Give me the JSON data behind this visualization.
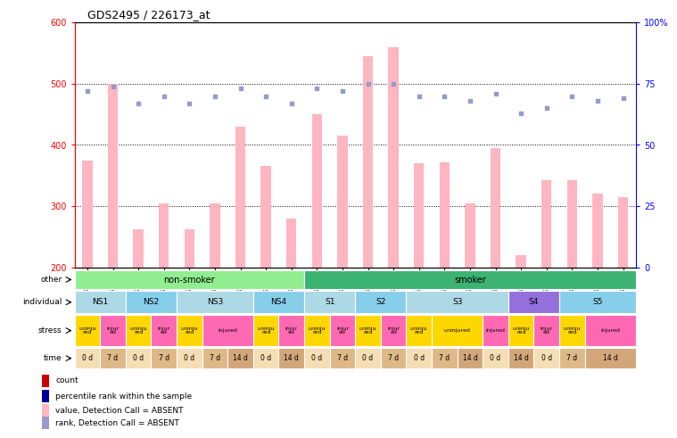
{
  "title": "GDS2495 / 226173_at",
  "samples": [
    "GSM122528",
    "GSM122531",
    "GSM122539",
    "GSM122540",
    "GSM122541",
    "GSM122542",
    "GSM122543",
    "GSM122544",
    "GSM122546",
    "GSM122527",
    "GSM122529",
    "GSM122530",
    "GSM122532",
    "GSM122533",
    "GSM122535",
    "GSM122536",
    "GSM122538",
    "GSM122534",
    "GSM122537",
    "GSM122545",
    "GSM122547",
    "GSM122548"
  ],
  "bar_values": [
    375,
    500,
    262,
    305,
    262,
    305,
    430,
    365,
    280,
    450,
    415,
    545,
    560,
    370,
    372,
    305,
    395,
    220,
    342,
    342,
    320,
    315
  ],
  "dot_values": [
    72,
    74,
    67,
    70,
    67,
    70,
    73,
    70,
    67,
    73,
    72,
    75,
    75,
    70,
    70,
    68,
    71,
    63,
    65,
    70,
    68,
    69
  ],
  "ylim_left": [
    200,
    600
  ],
  "ylim_right": [
    0,
    100
  ],
  "yticks_left": [
    200,
    300,
    400,
    500,
    600
  ],
  "yticks_right": [
    0,
    25,
    50,
    75,
    100
  ],
  "bar_color": "#FFB6C1",
  "dot_color": "#9999CC",
  "hlines": [
    300,
    400,
    500
  ],
  "other_row": [
    {
      "label": "non-smoker",
      "start": 0,
      "end": 9,
      "color": "#90EE90"
    },
    {
      "label": "smoker",
      "start": 9,
      "end": 22,
      "color": "#3CB371"
    }
  ],
  "individual_row": [
    {
      "label": "NS1",
      "start": 0,
      "end": 2,
      "color": "#ADD8E6"
    },
    {
      "label": "NS2",
      "start": 2,
      "end": 4,
      "color": "#87CEEB"
    },
    {
      "label": "NS3",
      "start": 4,
      "end": 7,
      "color": "#ADD8E6"
    },
    {
      "label": "NS4",
      "start": 7,
      "end": 9,
      "color": "#87CEEB"
    },
    {
      "label": "S1",
      "start": 9,
      "end": 11,
      "color": "#ADD8E6"
    },
    {
      "label": "S2",
      "start": 11,
      "end": 13,
      "color": "#87CEEB"
    },
    {
      "label": "S3",
      "start": 13,
      "end": 17,
      "color": "#ADD8E6"
    },
    {
      "label": "S4",
      "start": 17,
      "end": 19,
      "color": "#9370DB"
    },
    {
      "label": "S5",
      "start": 19,
      "end": 22,
      "color": "#87CEEB"
    }
  ],
  "stress_row": [
    {
      "label": "uninju\nred",
      "start": 0,
      "end": 1,
      "color": "#FFD700"
    },
    {
      "label": "injur\ned",
      "start": 1,
      "end": 2,
      "color": "#FF69B4"
    },
    {
      "label": "uninju\nred",
      "start": 2,
      "end": 3,
      "color": "#FFD700"
    },
    {
      "label": "injur\ned",
      "start": 3,
      "end": 4,
      "color": "#FF69B4"
    },
    {
      "label": "uninju\nred",
      "start": 4,
      "end": 5,
      "color": "#FFD700"
    },
    {
      "label": "injured",
      "start": 5,
      "end": 7,
      "color": "#FF69B4"
    },
    {
      "label": "uninju\nred",
      "start": 7,
      "end": 8,
      "color": "#FFD700"
    },
    {
      "label": "injur\ned",
      "start": 8,
      "end": 9,
      "color": "#FF69B4"
    },
    {
      "label": "uninju\nred",
      "start": 9,
      "end": 10,
      "color": "#FFD700"
    },
    {
      "label": "injur\ned",
      "start": 10,
      "end": 11,
      "color": "#FF69B4"
    },
    {
      "label": "uninju\nred",
      "start": 11,
      "end": 12,
      "color": "#FFD700"
    },
    {
      "label": "injur\ned",
      "start": 12,
      "end": 13,
      "color": "#FF69B4"
    },
    {
      "label": "uninju\nred",
      "start": 13,
      "end": 14,
      "color": "#FFD700"
    },
    {
      "label": "uninjured",
      "start": 14,
      "end": 16,
      "color": "#FFD700"
    },
    {
      "label": "injured",
      "start": 16,
      "end": 17,
      "color": "#FF69B4"
    },
    {
      "label": "uninju\nred",
      "start": 17,
      "end": 18,
      "color": "#FFD700"
    },
    {
      "label": "injur\ned",
      "start": 18,
      "end": 19,
      "color": "#FF69B4"
    },
    {
      "label": "uninju\nred",
      "start": 19,
      "end": 20,
      "color": "#FFD700"
    },
    {
      "label": "injured",
      "start": 20,
      "end": 22,
      "color": "#FF69B4"
    }
  ],
  "time_row": [
    {
      "label": "0 d",
      "start": 0,
      "end": 1,
      "color": "#F5DEB3"
    },
    {
      "label": "7 d",
      "start": 1,
      "end": 2,
      "color": "#DEB887"
    },
    {
      "label": "0 d",
      "start": 2,
      "end": 3,
      "color": "#F5DEB3"
    },
    {
      "label": "7 d",
      "start": 3,
      "end": 4,
      "color": "#DEB887"
    },
    {
      "label": "0 d",
      "start": 4,
      "end": 5,
      "color": "#F5DEB3"
    },
    {
      "label": "7 d",
      "start": 5,
      "end": 6,
      "color": "#DEB887"
    },
    {
      "label": "14 d",
      "start": 6,
      "end": 7,
      "color": "#D2A679"
    },
    {
      "label": "0 d",
      "start": 7,
      "end": 8,
      "color": "#F5DEB3"
    },
    {
      "label": "14 d",
      "start": 8,
      "end": 9,
      "color": "#D2A679"
    },
    {
      "label": "0 d",
      "start": 9,
      "end": 10,
      "color": "#F5DEB3"
    },
    {
      "label": "7 d",
      "start": 10,
      "end": 11,
      "color": "#DEB887"
    },
    {
      "label": "0 d",
      "start": 11,
      "end": 12,
      "color": "#F5DEB3"
    },
    {
      "label": "7 d",
      "start": 12,
      "end": 13,
      "color": "#DEB887"
    },
    {
      "label": "0 d",
      "start": 13,
      "end": 14,
      "color": "#F5DEB3"
    },
    {
      "label": "7 d",
      "start": 14,
      "end": 15,
      "color": "#DEB887"
    },
    {
      "label": "14 d",
      "start": 15,
      "end": 16,
      "color": "#D2A679"
    },
    {
      "label": "0 d",
      "start": 16,
      "end": 17,
      "color": "#F5DEB3"
    },
    {
      "label": "14 d",
      "start": 17,
      "end": 18,
      "color": "#D2A679"
    },
    {
      "label": "0 d",
      "start": 18,
      "end": 19,
      "color": "#F5DEB3"
    },
    {
      "label": "7 d",
      "start": 19,
      "end": 20,
      "color": "#DEB887"
    },
    {
      "label": "14 d",
      "start": 20,
      "end": 22,
      "color": "#D2A679"
    }
  ],
  "legend_items": [
    {
      "label": "count",
      "color": "#CC0000"
    },
    {
      "label": "percentile rank within the sample",
      "color": "#000099"
    },
    {
      "label": "value, Detection Call = ABSENT",
      "color": "#FFB6C1"
    },
    {
      "label": "rank, Detection Call = ABSENT",
      "color": "#9999CC"
    }
  ]
}
